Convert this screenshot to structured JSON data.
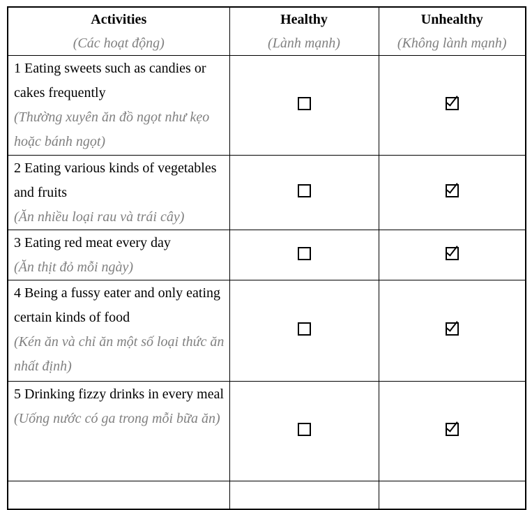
{
  "table": {
    "columns": [
      {
        "en": "Activities",
        "vi": "(Các hoạt động)"
      },
      {
        "en": "Healthy",
        "vi": "(Lành mạnh)"
      },
      {
        "en": "Unhealthy",
        "vi": "(Không lành mạnh)"
      }
    ],
    "rows": [
      {
        "en": "1 Eating sweets such as candies or cakes frequently",
        "vi": "(Thường xuyên ăn đồ ngọt như kẹo hoặc bánh ngọt)",
        "healthy": "unchecked",
        "unhealthy": "checked"
      },
      {
        "en": "2 Eating various kinds of vegetables and fruits",
        "vi": "(Ăn nhiều loại rau và trái cây)",
        "healthy": "unchecked",
        "unhealthy": "checked"
      },
      {
        "en": "3 Eating red meat every day",
        "vi": "(Ăn thịt đỏ mỗi ngày)",
        "healthy": "unchecked",
        "unhealthy": "checked"
      },
      {
        "en": "4 Being a fussy eater and only eating certain kinds of food",
        "vi": "(Kén ăn và chỉ ăn một số loại thức ăn nhất định)",
        "healthy": "unchecked",
        "unhealthy": "checked"
      },
      {
        "en": "5 Drinking fizzy drinks in every meal",
        "vi": "(Uống nước có ga trong mỗi bữa ăn)",
        "healthy": "unchecked",
        "unhealthy": "checked"
      }
    ],
    "colors": {
      "border": "#000000",
      "text": "#000000",
      "translation_text": "#808080",
      "background": "#ffffff"
    }
  }
}
